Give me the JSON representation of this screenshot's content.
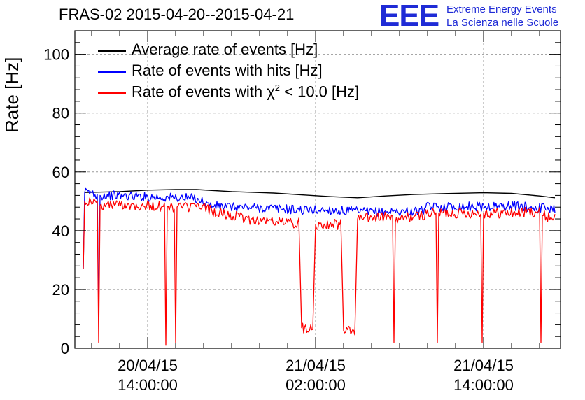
{
  "header": {
    "title": "FRAS-02 2015-04-20--2015-04-21",
    "logo_mark": "EEE",
    "logo_line1": "Extreme Energy Events",
    "logo_line2": "La Scienza nelle Scuole"
  },
  "colors": {
    "average": "#000000",
    "hits": "#0000ff",
    "chi2": "#ff0000",
    "grid": "#9a9a9a",
    "logo": "#1f2bd6"
  },
  "chart_data": {
    "type": "line",
    "ylabel": "Rate [Hz]",
    "xlabel": "",
    "ylim": [
      0,
      108
    ],
    "xlim": [
      -5.2,
      29.5
    ],
    "x_unit_note": "hours from 2015-04-20 14:00:00",
    "grid": true,
    "legend_placement": "top-left",
    "yticks": [
      "0",
      "20",
      "40",
      "60",
      "80",
      "100"
    ],
    "xticks": [
      {
        "x": 0,
        "line1": "20/04/15",
        "line2": "14:00:00"
      },
      {
        "x": 12,
        "line1": "21/04/15",
        "line2": "02:00:00"
      },
      {
        "x": 24,
        "line1": "21/04/15",
        "line2": "14:00:00"
      }
    ],
    "series": [
      {
        "name": "Average rate of events [Hz]",
        "color": "#000000",
        "points": [
          [
            -4.5,
            53.0
          ],
          [
            -2,
            53.3
          ],
          [
            0,
            53.8
          ],
          [
            2,
            54.0
          ],
          [
            3.5,
            54.0
          ],
          [
            6,
            53.3
          ],
          [
            9,
            52.8
          ],
          [
            11,
            52.2
          ],
          [
            13,
            51.6
          ],
          [
            15,
            51.2
          ],
          [
            17,
            51.8
          ],
          [
            19,
            52.3
          ],
          [
            21,
            52.6
          ],
          [
            24,
            52.9
          ],
          [
            26,
            52.7
          ],
          [
            28,
            51.8
          ],
          [
            29.1,
            51.2
          ]
        ]
      },
      {
        "name": "Rate of events with hits [Hz]",
        "color": "#0000ff",
        "points": [
          [
            -4.6,
            27.0
          ],
          [
            -4.5,
            53.0
          ],
          [
            -4.0,
            53.0
          ],
          [
            -3.6,
            52.0
          ],
          [
            -3.5,
            12.0
          ],
          [
            -3.4,
            52.0
          ],
          [
            -2,
            52.0
          ],
          [
            0,
            51.5
          ],
          [
            2,
            51.2
          ],
          [
            3.5,
            51.0
          ],
          [
            4.5,
            48.5
          ],
          [
            6,
            48.0
          ],
          [
            8,
            47.8
          ],
          [
            10,
            47.3
          ],
          [
            11,
            47.0
          ],
          [
            13,
            47.0
          ],
          [
            15,
            46.5
          ],
          [
            16,
            46.3
          ],
          [
            17.5,
            46.5
          ],
          [
            19.5,
            46.5
          ],
          [
            20,
            48.0
          ],
          [
            22,
            48.2
          ],
          [
            24,
            48.2
          ],
          [
            26,
            48.4
          ],
          [
            28,
            47.8
          ],
          [
            29.1,
            47.5
          ]
        ]
      },
      {
        "name": "Rate of events with χ2 < 10.0 [Hz]",
        "color": "#ff0000",
        "points": [
          [
            -4.6,
            27.0
          ],
          [
            -4.5,
            50.0
          ],
          [
            -4.0,
            50.0
          ],
          [
            -3.6,
            49.0
          ],
          [
            -3.5,
            2.0
          ],
          [
            -3.4,
            48.5
          ],
          [
            -2,
            49.0
          ],
          [
            0,
            48.5
          ],
          [
            1.2,
            48.0
          ],
          [
            1.3,
            1.0
          ],
          [
            1.4,
            48.0
          ],
          [
            1.9,
            48.0
          ],
          [
            2.0,
            2.0
          ],
          [
            2.1,
            48.0
          ],
          [
            4,
            48.0
          ],
          [
            5,
            46.0
          ],
          [
            7,
            44.0
          ],
          [
            8,
            43.5
          ],
          [
            10,
            42.8
          ],
          [
            10.8,
            42.5
          ],
          [
            11.0,
            7.0
          ],
          [
            11.8,
            7.0
          ],
          [
            12.0,
            42.0
          ],
          [
            13,
            42.5
          ],
          [
            13.8,
            42.0
          ],
          [
            14.0,
            6.0
          ],
          [
            14.8,
            6.0
          ],
          [
            15.0,
            44.0
          ],
          [
            16,
            44.5
          ],
          [
            17.5,
            44.8
          ],
          [
            17.6,
            2.0
          ],
          [
            17.7,
            43.0
          ],
          [
            18.5,
            44.5
          ],
          [
            19.5,
            45.0
          ],
          [
            20,
            46.0
          ],
          [
            20.6,
            45.8
          ],
          [
            20.7,
            2.0
          ],
          [
            20.8,
            46.0
          ],
          [
            22,
            46.0
          ],
          [
            23.8,
            46.0
          ],
          [
            23.9,
            2.0
          ],
          [
            24.0,
            46.0
          ],
          [
            26,
            46.0
          ],
          [
            28.0,
            46.5
          ],
          [
            28.1,
            2.0
          ],
          [
            28.2,
            45.0
          ],
          [
            29.1,
            44.5
          ]
        ]
      }
    ]
  },
  "legend": [
    {
      "key": "average",
      "label": "Average rate of events [Hz]"
    },
    {
      "key": "hits",
      "label": "Rate of events with hits [Hz]"
    },
    {
      "key": "chi2",
      "label_prefix": "Rate of events with ",
      "label_symbol": "χ",
      "label_sup": "2",
      "label_suffix": " < 10.0 [Hz]"
    }
  ]
}
